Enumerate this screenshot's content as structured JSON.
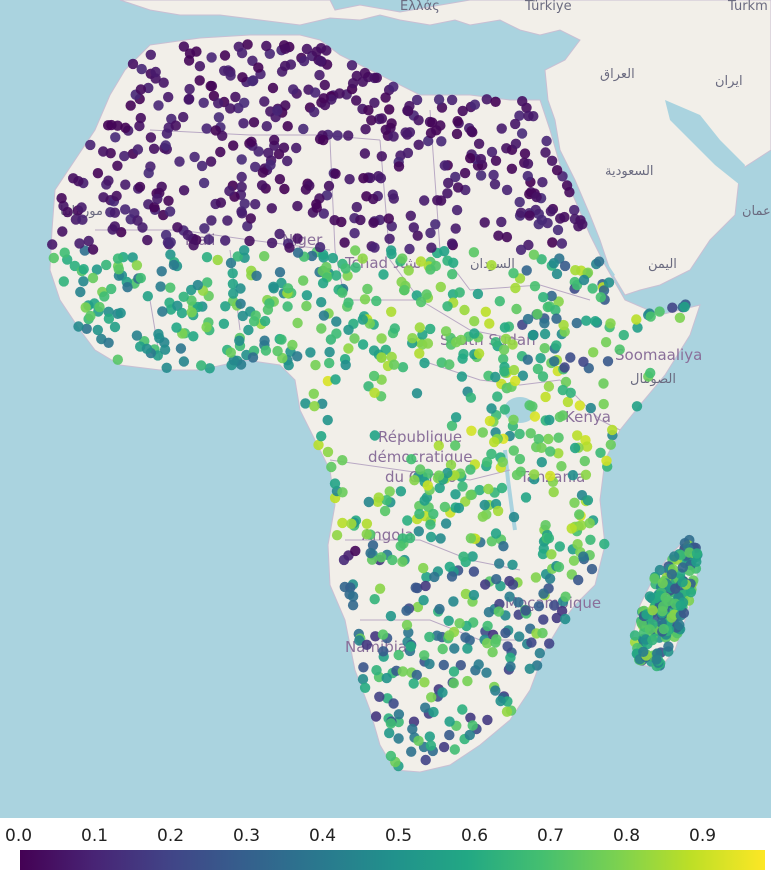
{
  "map": {
    "place_labels": [
      {
        "id": "greece",
        "text": "Ελλάς"
      },
      {
        "id": "turkey",
        "text": "Türkiye"
      },
      {
        "id": "turkmen",
        "text": "Turkm"
      },
      {
        "id": "iraq",
        "text": "العراق"
      },
      {
        "id": "iran",
        "text": "ایران"
      },
      {
        "id": "saudi",
        "text": "السعودية"
      },
      {
        "id": "oman",
        "text": "عمان"
      },
      {
        "id": "yemen",
        "text": "اليمن"
      },
      {
        "id": "mauritania",
        "text": "موريتانيا"
      },
      {
        "id": "mali",
        "text": "Mali"
      },
      {
        "id": "niger",
        "text": "Niger"
      },
      {
        "id": "chad",
        "text": "Tchad تشاد"
      },
      {
        "id": "sudan",
        "text": "السودان"
      },
      {
        "id": "southsudan",
        "text": "South Sudan"
      },
      {
        "id": "somalia",
        "text": "Soomaaliya"
      },
      {
        "id": "somalia_ar",
        "text": "الصومال"
      },
      {
        "id": "kenya",
        "text": "Kenya"
      },
      {
        "id": "drc1",
        "text": "République"
      },
      {
        "id": "drc2",
        "text": "démocratique"
      },
      {
        "id": "drc3",
        "text": "du Congo"
      },
      {
        "id": "tanzania",
        "text": "Tanzania"
      },
      {
        "id": "angola",
        "text": "Angola"
      },
      {
        "id": "mozambique",
        "text": "Moçambique"
      },
      {
        "id": "namibia",
        "text": "Namibia"
      }
    ],
    "colors": {
      "water": "#aad3df",
      "land": "#f2efe9",
      "border": "#b9a9c4"
    },
    "point_colorscale": "viridis",
    "point_value_range": [
      0,
      1
    ]
  },
  "legend": {
    "ticks": [
      "0.0",
      "0.1",
      "0.2",
      "0.3",
      "0.4",
      "0.5",
      "0.6",
      "0.7",
      "0.8",
      "0.9"
    ],
    "colorscale": "viridis",
    "range": [
      0,
      1
    ]
  }
}
